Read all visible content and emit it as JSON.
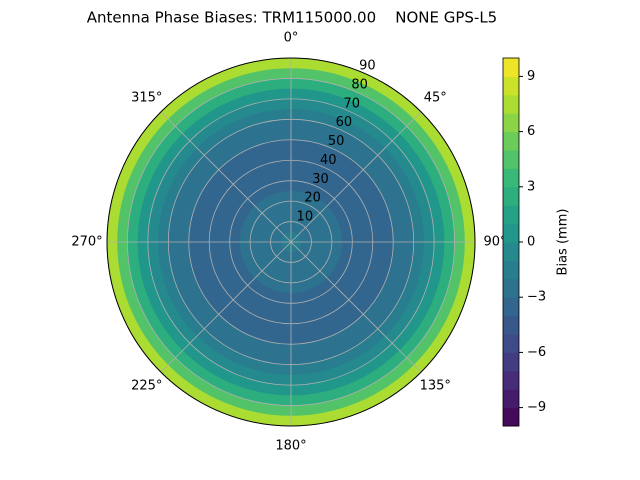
{
  "chart_data": {
    "type": "polar-contour",
    "title": "Antenna Phase Biases: TRM115000.00    NONE GPS-L5",
    "zenith": [
      0,
      5,
      10,
      15,
      20,
      25,
      30,
      35,
      40,
      45,
      50,
      55,
      60,
      65,
      70,
      75,
      80,
      85,
      90
    ],
    "values": [
      -2,
      -2,
      -2.5,
      -2.5,
      -3,
      -3,
      -3.5,
      -3.5,
      -3.5,
      -3.5,
      -3.5,
      -3,
      -2.5,
      -2,
      -1,
      0,
      2,
      4,
      7
    ],
    "rlim": [
      0,
      90
    ],
    "rticks": [
      10,
      20,
      30,
      40,
      50,
      60,
      70,
      80,
      90
    ],
    "thetaticks": [
      {
        "value": 0,
        "label": "0°"
      },
      {
        "value": 45,
        "label": "45°"
      },
      {
        "value": 90,
        "label": "90°"
      },
      {
        "value": 135,
        "label": "135°"
      },
      {
        "value": 180,
        "label": "180°"
      },
      {
        "value": 225,
        "label": "225°"
      },
      {
        "value": 270,
        "label": "270°"
      },
      {
        "value": 315,
        "label": "315°"
      }
    ],
    "colormap": "viridis",
    "colorbar_label": "Bias (mm)",
    "clim": [
      -10,
      10
    ],
    "cticks": [
      {
        "value": -9,
        "label": "−9"
      },
      {
        "value": -6,
        "label": "−6"
      },
      {
        "value": -3,
        "label": "−3"
      },
      0,
      3,
      6,
      9
    ],
    "grid": true
  }
}
